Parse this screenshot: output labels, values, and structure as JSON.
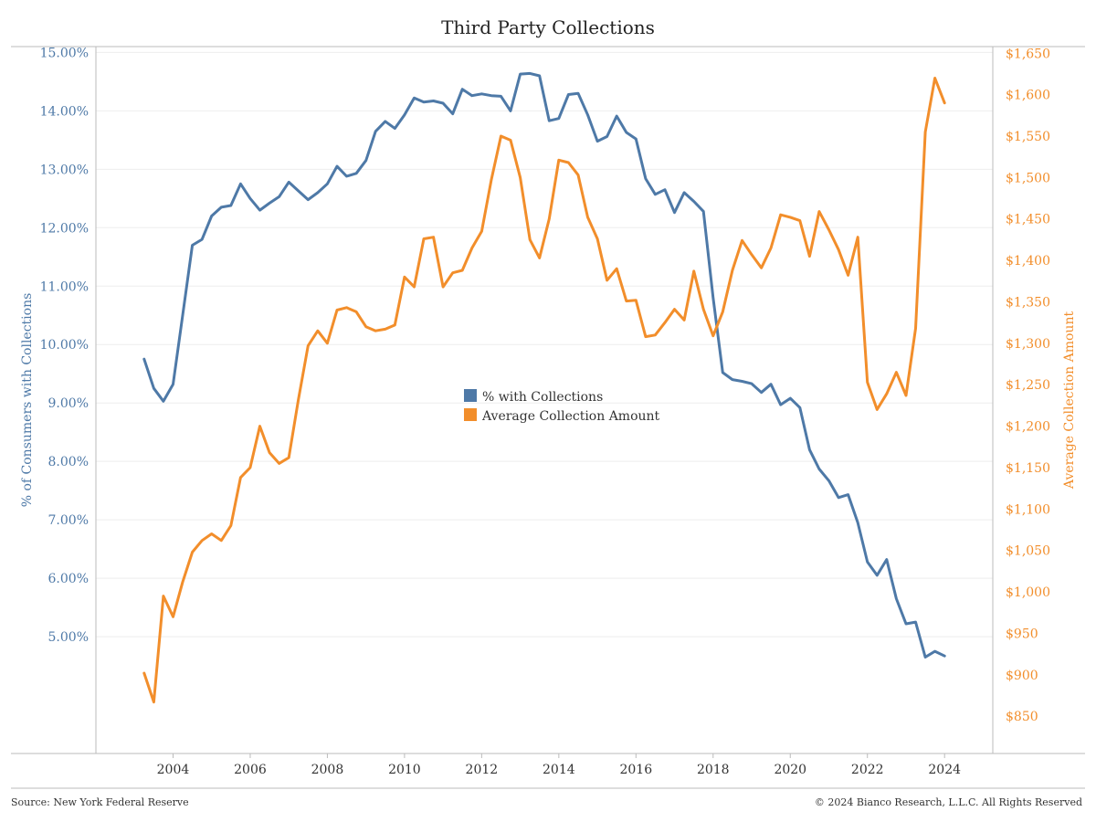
{
  "footer": {
    "source": "Source: New York Federal Reserve",
    "copyright": "© 2024 Bianco Research, L.L.C. All Rights Reserved"
  },
  "colors": {
    "series_pct": "#4e79a7",
    "series_amount": "#f28e2b",
    "grid": "#eeeeee",
    "axis": "#bbbbbb"
  },
  "chart_data": {
    "type": "line",
    "title": "Third Party Collections",
    "ylabel_left": "% of Consumers with Collections",
    "ylabel_right": "Average Collection Amount",
    "xlabel": "",
    "xlim": [
      2002.0,
      2025.25
    ],
    "ylim_left": [
      3.0,
      15.1
    ],
    "ylim_right": [
      805,
      1658
    ],
    "x_ticks": [
      2004,
      2006,
      2008,
      2010,
      2012,
      2014,
      2016,
      2018,
      2020,
      2022,
      2024
    ],
    "x_tick_labels": [
      "2004",
      "2006",
      "2008",
      "2010",
      "2012",
      "2014",
      "2016",
      "2018",
      "2020",
      "2022",
      "2024"
    ],
    "y_left_ticks": [
      5,
      6,
      7,
      8,
      9,
      10,
      11,
      12,
      13,
      14,
      15
    ],
    "y_left_tick_labels": [
      "5.00%",
      "6.00%",
      "7.00%",
      "8.00%",
      "9.00%",
      "10.00%",
      "11.00%",
      "12.00%",
      "13.00%",
      "14.00%",
      "15.00%"
    ],
    "y_right_ticks": [
      850,
      900,
      950,
      1000,
      1050,
      1100,
      1150,
      1200,
      1250,
      1300,
      1350,
      1400,
      1450,
      1500,
      1550,
      1600,
      1650
    ],
    "y_right_tick_labels": [
      "$850",
      "$900",
      "$950",
      "$1,000",
      "$1,050",
      "$1,100",
      "$1,150",
      "$1,200",
      "$1,250",
      "$1,300",
      "$1,350",
      "$1,400",
      "$1,450",
      "$1,500",
      "$1,550",
      "$1,600",
      "$1,650"
    ],
    "grid": "horizontal",
    "legend_position": "center",
    "x": [
      2003.25,
      2003.5,
      2003.75,
      2004.0,
      2004.25,
      2004.5,
      2004.75,
      2005.0,
      2005.25,
      2005.5,
      2005.75,
      2006.0,
      2006.25,
      2006.5,
      2006.75,
      2007.0,
      2007.25,
      2007.5,
      2007.75,
      2008.0,
      2008.25,
      2008.5,
      2008.75,
      2009.0,
      2009.25,
      2009.5,
      2009.75,
      2010.0,
      2010.25,
      2010.5,
      2010.75,
      2011.0,
      2011.25,
      2011.5,
      2011.75,
      2012.0,
      2012.25,
      2012.5,
      2012.75,
      2013.0,
      2013.25,
      2013.5,
      2013.75,
      2014.0,
      2014.25,
      2014.5,
      2014.75,
      2015.0,
      2015.25,
      2015.5,
      2015.75,
      2016.0,
      2016.25,
      2016.5,
      2016.75,
      2017.0,
      2017.25,
      2017.5,
      2017.75,
      2018.0,
      2018.25,
      2018.5,
      2018.75,
      2019.0,
      2019.25,
      2019.5,
      2019.75,
      2020.0,
      2020.25,
      2020.5,
      2020.75,
      2021.0,
      2021.25,
      2021.5,
      2021.75,
      2022.0,
      2022.25,
      2022.5,
      2022.75,
      2023.0,
      2023.25,
      2023.5,
      2023.75,
      2024.0
    ],
    "series": [
      {
        "name": "% with Collections",
        "axis": "left",
        "values": [
          9.75,
          9.25,
          9.03,
          9.32,
          10.5,
          11.7,
          11.8,
          12.2,
          12.35,
          12.38,
          12.75,
          12.5,
          12.3,
          12.42,
          12.53,
          12.78,
          12.63,
          12.48,
          12.6,
          12.75,
          13.05,
          12.88,
          12.93,
          13.15,
          13.65,
          13.82,
          13.7,
          13.93,
          14.22,
          14.15,
          14.17,
          14.13,
          13.95,
          14.37,
          14.26,
          14.29,
          14.26,
          14.25,
          14.0,
          14.63,
          14.64,
          14.6,
          13.83,
          13.87,
          14.28,
          14.3,
          13.93,
          13.48,
          13.56,
          13.91,
          13.63,
          13.52,
          12.84,
          12.57,
          12.65,
          12.26,
          12.6,
          12.45,
          12.28,
          10.8,
          9.52,
          9.4,
          9.37,
          9.33,
          9.18,
          9.32,
          8.97,
          9.08,
          8.92,
          8.2,
          7.87,
          7.67,
          7.38,
          7.43,
          6.95,
          6.28,
          6.05,
          6.32,
          5.65,
          5.22,
          5.25,
          4.65,
          4.75,
          4.67
        ]
      },
      {
        "name": "Average Collection Amount",
        "axis": "right",
        "values": [
          902,
          867,
          995,
          970,
          1012,
          1048,
          1062,
          1070,
          1062,
          1080,
          1138,
          1150,
          1200,
          1168,
          1155,
          1162,
          1232,
          1297,
          1315,
          1300,
          1340,
          1343,
          1338,
          1320,
          1315,
          1317,
          1322,
          1380,
          1368,
          1426,
          1428,
          1368,
          1385,
          1388,
          1415,
          1435,
          1497,
          1550,
          1545,
          1500,
          1425,
          1403,
          1450,
          1521,
          1518,
          1503,
          1452,
          1426,
          1376,
          1390,
          1351,
          1352,
          1308,
          1310,
          1325,
          1341,
          1328,
          1387,
          1341,
          1309,
          1338,
          1388,
          1424,
          1407,
          1391,
          1415,
          1455,
          1452,
          1448,
          1405,
          1459,
          1437,
          1413,
          1382,
          1428,
          1253,
          1220,
          1239,
          1265,
          1237,
          1318,
          1555,
          1620,
          1590
        ]
      }
    ]
  }
}
